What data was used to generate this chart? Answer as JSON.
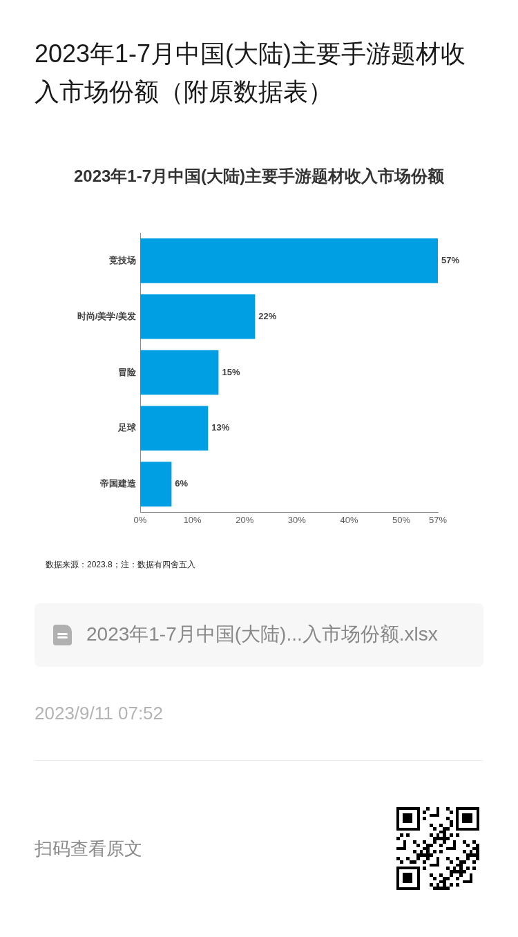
{
  "chart_data": {
    "type": "bar",
    "orientation": "horizontal",
    "title": "2023年1-7月中国(大陆)主要手游题材收入市场份额（附原数据表）",
    "subtitle": "2023年1-7月中国(大陆)主要手游题材收入市场份额",
    "categories": [
      "竞技场",
      "时尚/美学/美发",
      "冒险",
      "足球",
      "帝国建造"
    ],
    "values": [
      57,
      22,
      15,
      13,
      6
    ],
    "value_labels": [
      "57%",
      "22%",
      "15%",
      "13%",
      "6%"
    ],
    "color": "#009fe3",
    "xlim": [
      0,
      57
    ],
    "xticks": [
      {
        "value": 0,
        "label": "0%"
      },
      {
        "value": 10,
        "label": "10%"
      },
      {
        "value": 20,
        "label": "20%"
      },
      {
        "value": 30,
        "label": "30%"
      },
      {
        "value": 40,
        "label": "40%"
      },
      {
        "value": 50,
        "label": "50%"
      },
      {
        "value": 57,
        "label": "57%"
      }
    ],
    "grid": false,
    "annotations": [
      "数据来源：2023.8；注：数据有四舍五入",
      "2023年1-7月中国(大陆)...入市场份额.xlsx",
      "2023/9/11 07:52",
      "扫码查看原文"
    ]
  }
}
